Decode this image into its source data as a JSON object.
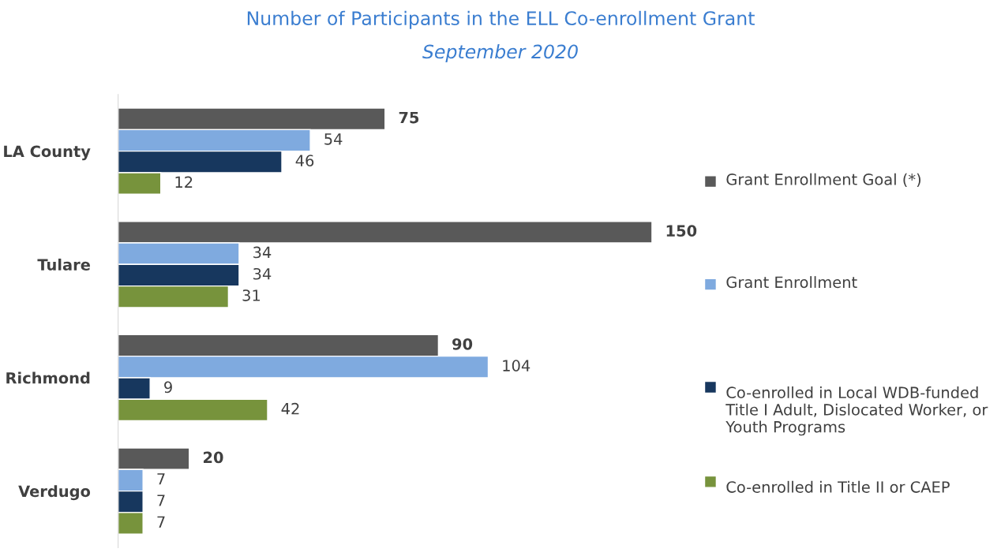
{
  "chart_data": {
    "type": "bar",
    "orientation": "horizontal",
    "title": "Number of Participants in the ELL Co-enrollment Grant",
    "subtitle": "September 2020",
    "categories": [
      "LA County",
      "Tulare",
      "Richmond",
      "Verdugo"
    ],
    "series": [
      {
        "name": "Grant Enrollment Goal (*)",
        "color": "#595959",
        "values": [
          75,
          150,
          90,
          20
        ]
      },
      {
        "name": "Grant Enrollment",
        "color": "#7faadf",
        "values": [
          54,
          34,
          104,
          7
        ]
      },
      {
        "name": "Co-enrolled in Local WDB-funded Title I Adult, Dislocated Worker, or Youth Programs",
        "color": "#17375e",
        "values": [
          46,
          34,
          9,
          7
        ]
      },
      {
        "name": "Co-enrolled in Title II or CAEP",
        "color": "#77933c",
        "values": [
          12,
          31,
          42,
          7
        ]
      }
    ],
    "data_labels": true,
    "legend": "right",
    "grid": false,
    "tick_labels": "y"
  }
}
